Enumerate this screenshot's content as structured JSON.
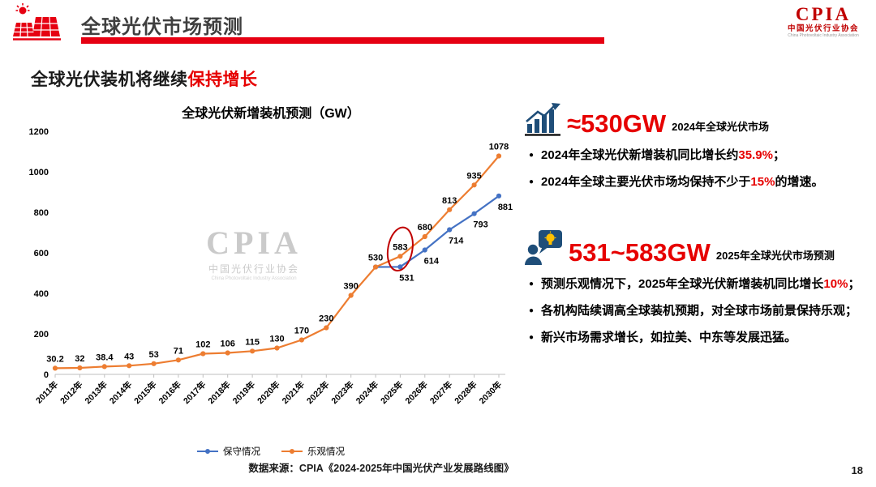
{
  "header": {
    "title": "全球光伏市场预测",
    "logo": {
      "acronym": "CPIA",
      "cn": "中国光伏行业协会",
      "en": "China Photovoltaic Industry Association"
    }
  },
  "subtitle": {
    "black": "全球光伏装机将继续",
    "red": "保持增长"
  },
  "ui": {
    "bullet_glyph": "●"
  },
  "colors": {
    "accent_red": "#E60012",
    "highlight_red": "#E60000",
    "navy_icon": "#1F4E79",
    "series_blue": "#4472C4",
    "series_orange": "#ED7D31",
    "annotation_red": "#C00000"
  },
  "chart_data": {
    "type": "line",
    "title": "全球光伏新增装机预测（GW）",
    "categories": [
      "2011年",
      "2012年",
      "2013年",
      "2014年",
      "2015年",
      "2016年",
      "2017年",
      "2018年",
      "2019年",
      "2020年",
      "2021年",
      "2022年",
      "2023年",
      "2024年",
      "2025年",
      "2026年",
      "2027年",
      "2028年",
      "2030年"
    ],
    "series": [
      {
        "name": "保守情况",
        "color": "#4472C4",
        "values": [
          null,
          null,
          null,
          null,
          null,
          null,
          null,
          null,
          null,
          null,
          null,
          null,
          null,
          530,
          531,
          614,
          714,
          793,
          881
        ]
      },
      {
        "name": "乐观情况",
        "color": "#ED7D31",
        "values": [
          30.2,
          32,
          38.4,
          43,
          53,
          71,
          102,
          106,
          115,
          130,
          170,
          230,
          390,
          530,
          583,
          680,
          813,
          935,
          1078
        ]
      }
    ],
    "ylim": [
      0,
      1200
    ],
    "yticks": [
      0,
      200,
      400,
      600,
      800,
      1000,
      1200
    ],
    "grid": false,
    "legend_position": "bottom",
    "annotation": {
      "circled_point": {
        "series": "乐观情况",
        "category": "2025年",
        "value": 583
      }
    }
  },
  "watermark": {
    "acronym": "CPIA",
    "cn": "中国光伏行业协会",
    "en": "China Photovoltaic Industry Association"
  },
  "panel": {
    "block1": {
      "headline": "≈530GW",
      "caption": "2024年全球光伏市场",
      "bullets": [
        {
          "pre": "2024年全球光伏新增装机同比增长约",
          "red": "35.9%",
          "post": "；"
        },
        {
          "pre": "2024年全球主要光伏市场均保持不少于",
          "red": "15%",
          "post": "的增速。"
        }
      ]
    },
    "block2": {
      "headline": "531~583GW",
      "caption": "2025年全球光伏市场预测",
      "bullets": [
        {
          "pre": "预测乐观情况下，2025年全球光伏新增装机同比增长",
          "red": "10%",
          "post": "；"
        },
        {
          "pre": "各机构陆续调高全球装机预期，对全球市场前景保持乐观；",
          "red": "",
          "post": ""
        },
        {
          "pre": "新兴市场需求增长，如拉美、中东等发展迅猛。",
          "red": "",
          "post": ""
        }
      ]
    }
  },
  "footer": {
    "source": "数据来源：CPIA《2024-2025年中国光伏产业发展路线图》",
    "page": "18"
  }
}
